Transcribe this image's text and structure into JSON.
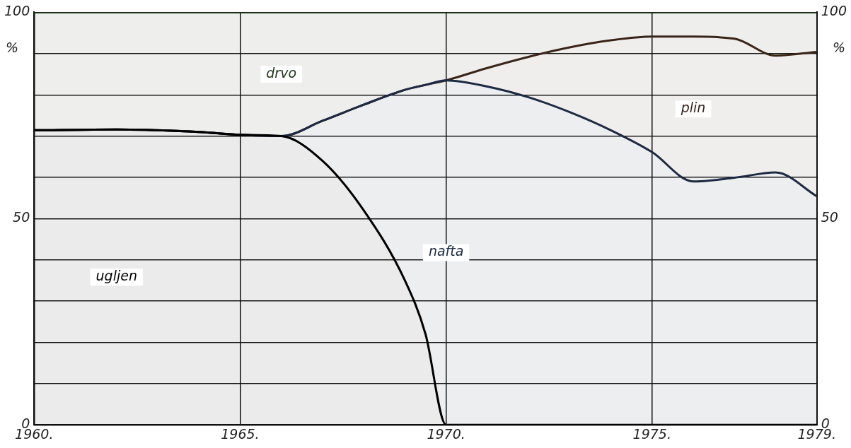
{
  "chart_data": {
    "type": "area",
    "stacked": true,
    "ylabel": "%",
    "y2label": "%",
    "x": [
      1960,
      1962,
      1964,
      1965,
      1966,
      1967,
      1968,
      1969,
      1969.5,
      1970,
      1971,
      1972,
      1973,
      1974,
      1975,
      1976,
      1977,
      1978,
      1979
    ],
    "series": [
      {
        "name": "ugljen",
        "color": "#000000",
        "values": [
          71.4,
          71.6,
          71,
          70.3,
          70,
          64,
          52,
          35,
          22,
          0,
          0,
          0,
          0,
          0,
          0,
          0,
          0,
          0,
          0
        ]
      },
      {
        "name": "nafta",
        "color": "#1c2a44",
        "values": [
          0,
          0,
          0,
          0,
          0,
          9.7,
          25.6,
          46.2,
          60.4,
          83.5,
          82,
          79.4,
          75.8,
          71.4,
          66.1,
          59,
          59.9,
          61.2,
          55.4
        ]
      },
      {
        "name": "plin",
        "color": "#3a2418",
        "values": [
          0,
          0,
          0,
          0,
          0,
          0,
          0,
          0,
          0,
          0,
          4.5,
          9.8,
          15.7,
          21.8,
          28,
          35.1,
          33.7,
          28.3,
          35
        ]
      },
      {
        "name": "drvo",
        "color": "#23381f",
        "values": [
          28.6,
          28.4,
          29,
          29.7,
          30,
          26.3,
          22.4,
          18.8,
          17.6,
          16.5,
          13.5,
          10.8,
          8.5,
          6.8,
          5.9,
          5.9,
          6.4,
          10.5,
          9.6
        ]
      }
    ],
    "xlim": [
      1960,
      1979
    ],
    "xticks": [
      {
        "value": 1960,
        "label": "1960."
      },
      {
        "value": 1965,
        "label": "1965."
      },
      {
        "value": 1970,
        "label": "1970."
      },
      {
        "value": 1975,
        "label": "1975."
      },
      {
        "value": 1979,
        "label": "1979."
      }
    ],
    "ylim": [
      0,
      100
    ],
    "yticks": [
      0,
      {
        "value": 10,
        "label": null
      },
      {
        "value": 20,
        "label": null
      },
      {
        "value": 30,
        "label": null
      },
      {
        "value": 40,
        "label": null
      },
      50,
      {
        "value": 60,
        "label": null
      },
      {
        "value": 70,
        "label": null
      },
      {
        "value": 80,
        "label": null
      },
      {
        "value": 90,
        "label": null
      },
      100
    ],
    "y2lim": [
      0,
      100
    ],
    "y2ticks": [
      0,
      {
        "value": 10,
        "label": null
      },
      {
        "value": 20,
        "label": null
      },
      {
        "value": 30,
        "label": null
      },
      {
        "value": 40,
        "label": null
      },
      50,
      {
        "value": 60,
        "label": null
      },
      {
        "value": 70,
        "label": null
      },
      {
        "value": 80,
        "label": null
      },
      {
        "value": 90,
        "label": null
      },
      100
    ],
    "grid": true,
    "legend": false
  }
}
